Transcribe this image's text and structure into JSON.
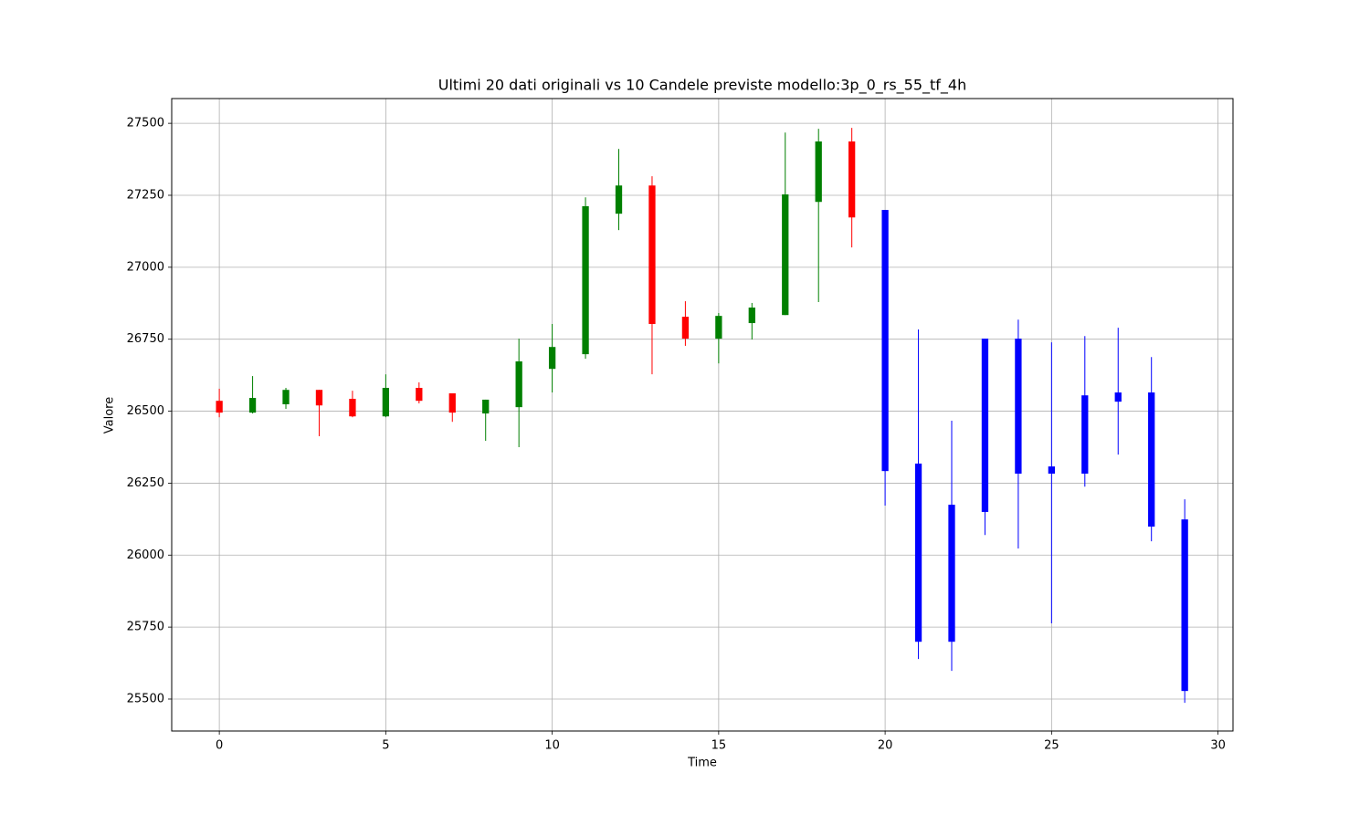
{
  "chart_data": {
    "type": "candlestick",
    "title": "Ultimi 20 dati originali vs 10 Candele previste modello:3p_0_rs_55_tf_4h",
    "x_label": "Time",
    "y_label": "Valore",
    "x": [
      0,
      1,
      2,
      3,
      4,
      5,
      6,
      7,
      8,
      9,
      10,
      11,
      12,
      13,
      14,
      15,
      16,
      17,
      18,
      19,
      20,
      21,
      22,
      23,
      24,
      25,
      26,
      27,
      28,
      29
    ],
    "open": [
      26536,
      26495,
      26524,
      26574,
      26543,
      26482,
      26581,
      26562,
      26492,
      26514,
      26647,
      26698,
      27186,
      27284,
      26828,
      26752,
      26806,
      26834,
      27227,
      27437,
      27199,
      26318,
      26175,
      26752,
      26752,
      26308,
      26555,
      26565,
      26565,
      26124
    ],
    "high": [
      26578,
      26622,
      26581,
      26574,
      26571,
      26628,
      26600,
      26562,
      26540,
      26752,
      26803,
      27243,
      27411,
      27316,
      26882,
      26841,
      26876,
      27468,
      27481,
      27484,
      27199,
      26784,
      26467,
      26752,
      26818,
      26739,
      26761,
      26790,
      26688,
      26194
    ],
    "low": [
      26479,
      26492,
      26508,
      26413,
      26479,
      26479,
      26527,
      26463,
      26397,
      26375,
      26565,
      26682,
      27129,
      26628,
      26727,
      26666,
      26749,
      26834,
      26879,
      27069,
      26172,
      25639,
      25598,
      26070,
      26023,
      25763,
      26238,
      26349,
      26048,
      25487
    ],
    "close": [
      26495,
      26546,
      26574,
      26520,
      26482,
      26581,
      26536,
      26495,
      26540,
      26673,
      26723,
      27212,
      27284,
      26803,
      26752,
      26831,
      26860,
      27253,
      27437,
      27173,
      26292,
      25699,
      25699,
      26150,
      26283,
      26283,
      26283,
      26533,
      26099,
      25528
    ],
    "colors": [
      "red",
      "green",
      "green",
      "red",
      "red",
      "green",
      "red",
      "red",
      "green",
      "green",
      "green",
      "green",
      "green",
      "red",
      "red",
      "green",
      "green",
      "green",
      "green",
      "red",
      "blue",
      "blue",
      "blue",
      "blue",
      "blue",
      "blue",
      "blue",
      "blue",
      "blue",
      "blue"
    ],
    "xlim": [
      -1.43,
      30.45
    ],
    "ylim": [
      25389,
      27586
    ],
    "xticks": [
      0,
      5,
      10,
      15,
      20,
      25,
      30
    ],
    "yticks": [
      25500,
      25750,
      26000,
      26250,
      26500,
      26750,
      27000,
      27250,
      27500
    ],
    "grid": true
  }
}
